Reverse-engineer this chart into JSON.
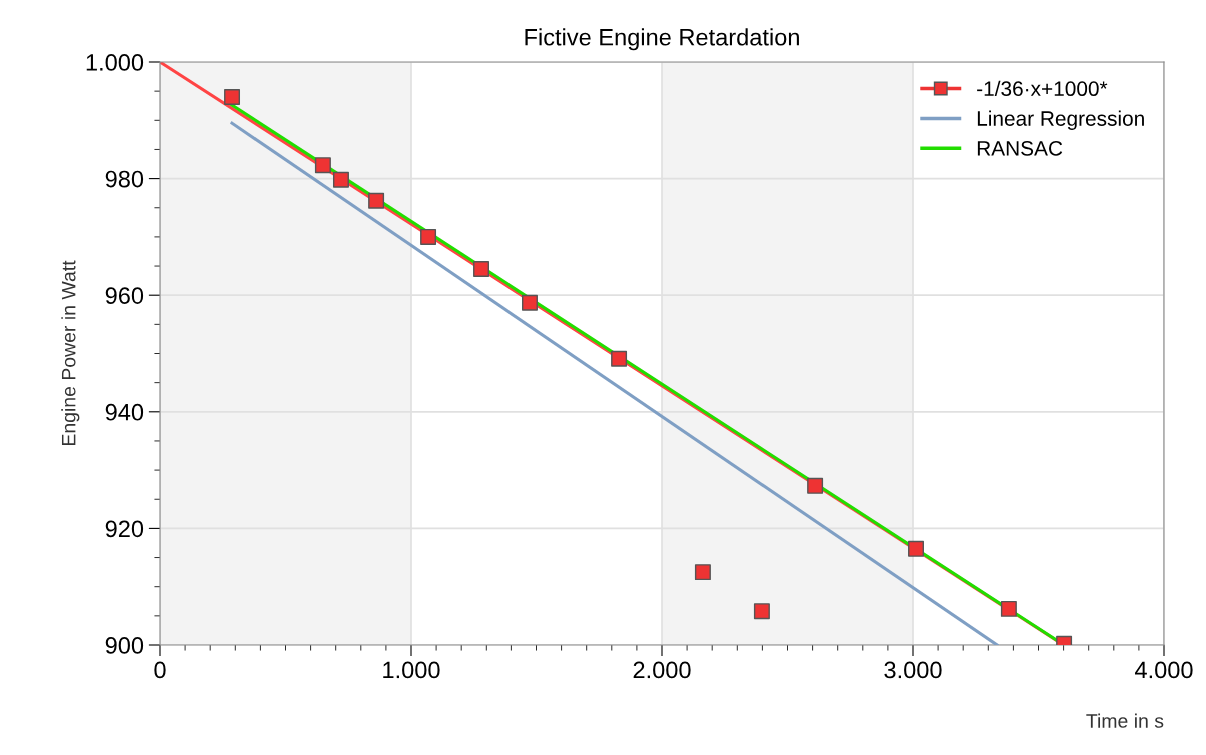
{
  "chart_data": {
    "type": "scatter",
    "title": "Fictive Engine Retardation",
    "xlabel": "Time in s",
    "ylabel": "Engine Power in Watt",
    "xlim": [
      0,
      4000
    ],
    "ylim": [
      900,
      1000
    ],
    "xticks": [
      0,
      {
        "value": 1000,
        "label": "1.000"
      },
      {
        "value": 2000,
        "label": "2.000"
      },
      {
        "value": 3000,
        "label": "3.000"
      },
      {
        "value": 4000,
        "label": "4.000"
      }
    ],
    "yticks": [
      900,
      920,
      940,
      960,
      980,
      {
        "value": 1000,
        "label": "1.000"
      }
    ],
    "grid": true,
    "legend": "top right",
    "bands": [
      {
        "axis": "x",
        "from": 0,
        "to": 1000,
        "color": "#f3f3f3"
      },
      {
        "axis": "x",
        "from": 2000,
        "to": 3000,
        "color": "#f3f3f3"
      }
    ],
    "series": [
      {
        "type": "line",
        "color": "#ff4444",
        "x": [
          0,
          3600
        ],
        "values": [
          1000,
          900
        ]
      },
      {
        "name": "-1/36·x+1000*",
        "color": "#ee3333",
        "marker": "square",
        "x": [
          287,
          649,
          721,
          861,
          1068,
          1279,
          1474,
          1829,
          2163,
          2398,
          2610,
          3012,
          3382,
          3602
        ],
        "values": [
          994.0,
          982.3,
          979.8,
          976.2,
          970.0,
          964.5,
          958.7,
          949.1,
          912.5,
          905.8,
          927.3,
          916.5,
          906.2,
          900.2
        ]
      },
      {
        "type": "line",
        "name": "Linear Regression",
        "color": "#7f9fc4",
        "x": [
          287,
          3335
        ],
        "values": [
          989.5,
          900
        ]
      },
      {
        "type": "line",
        "name": "RANSAC",
        "color": "#22dd00",
        "x": [
          287,
          3602
        ],
        "values": [
          992.6,
          900
        ]
      }
    ]
  }
}
